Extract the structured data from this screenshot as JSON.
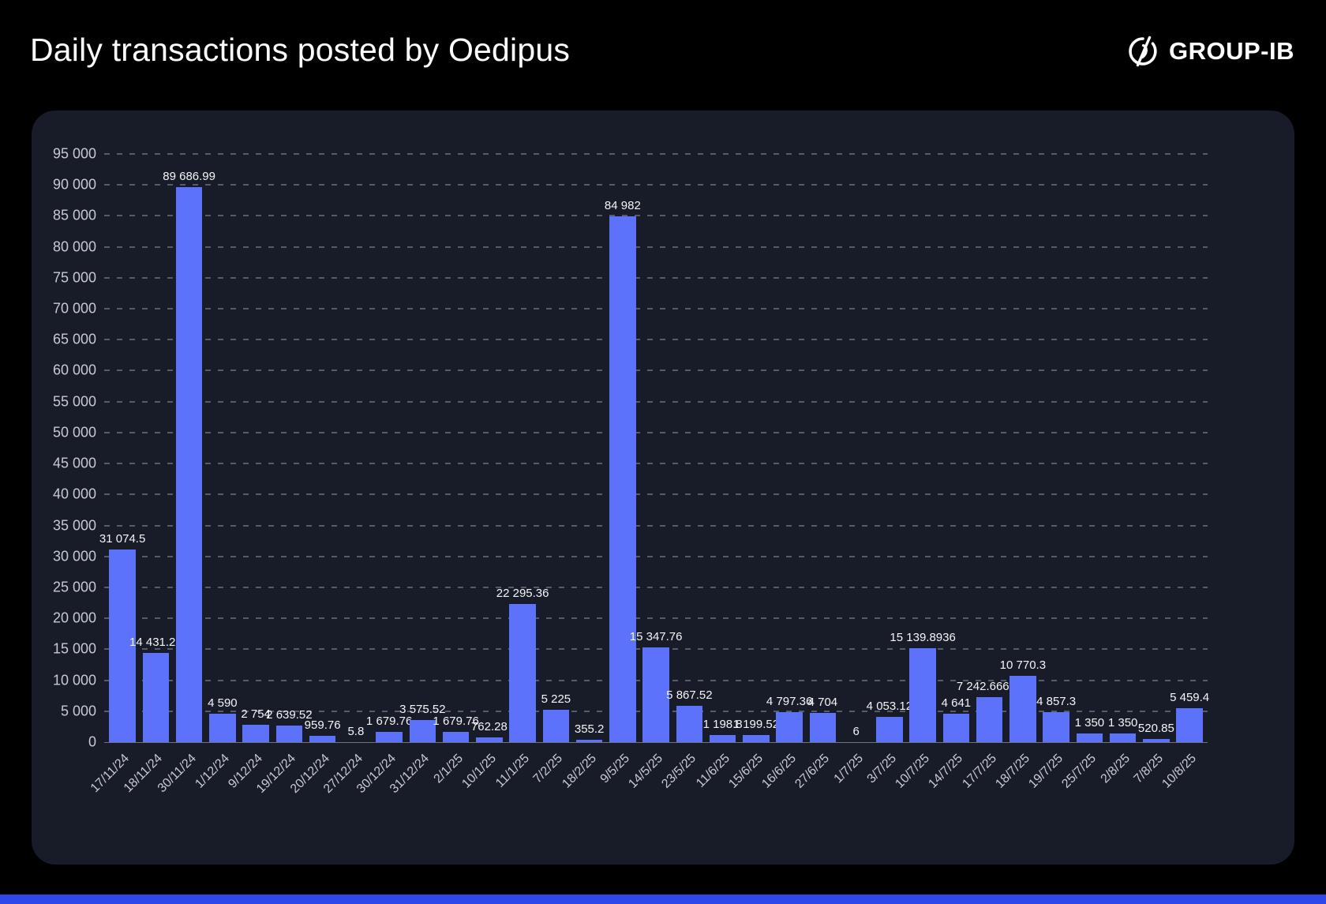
{
  "header": {
    "title": "Daily transactions posted by Oedipus",
    "brand": "GROUP-IB"
  },
  "colors": {
    "page_background": "#000000",
    "panel_background": "#181b28",
    "bar": "#5c72fa",
    "gridline": "#565b6c",
    "axis_text": "#c7c9d3",
    "value_text": "#f4f5f7",
    "accent_strip": "#2d47eb"
  },
  "chart_data": {
    "type": "bar",
    "title": "Daily transactions posted by Oedipus",
    "xlabel": "",
    "ylabel": "",
    "ylim": [
      0,
      95000
    ],
    "y_tick_step": 5000,
    "y_tick_labels": [
      "95 000",
      "90 000",
      "85 000",
      "80 000",
      "75 000",
      "70 000",
      "65 000",
      "60 000",
      "55 000",
      "50 000",
      "45 000",
      "40 000",
      "35 000",
      "30 000",
      "25 000",
      "20 000",
      "15 000",
      "10 000",
      "5 000",
      "0"
    ],
    "grid": "dashed-horizontal",
    "legend": "none",
    "categories": [
      "17/11/24",
      "18/11/24",
      "30/11/24",
      "1/12/24",
      "9/12/24",
      "19/12/24",
      "20/12/24",
      "27/12/24",
      "30/12/24",
      "31/12/24",
      "2/1/25",
      "10/1/25",
      "11/1/25",
      "7/2/25",
      "18/2/25",
      "9/5/25",
      "14/5/25",
      "23/5/25",
      "11/6/25",
      "15/6/25",
      "16/6/25",
      "27/6/25",
      "1/7/25",
      "3/7/25",
      "10/7/25",
      "14/7/25",
      "17/7/25",
      "18/7/25",
      "19/7/25",
      "25/7/25",
      "2/8/25",
      "7/8/25",
      "10/8/25"
    ],
    "values": [
      31074.5,
      14431.26,
      89686.99,
      4590,
      2754,
      2639.52,
      959.76,
      5.8,
      1679.76,
      3575.52,
      1679.76,
      762.28,
      22295.36,
      5225,
      355.2,
      84982,
      15347.76,
      5867.52,
      1198.8,
      1199.52,
      4797.36,
      4704,
      6,
      4053.12,
      15139.8936,
      4641,
      7242.66627,
      10770.3,
      4857.3,
      1350,
      1350,
      520.85,
      5459.4
    ],
    "value_labels": [
      "31 074.5",
      "14 431.26",
      "89 686.99",
      "4 590",
      "2 754",
      "2 639.52",
      "959.76",
      "5.8",
      "1 679.76",
      "3 575.52",
      "1 679.76",
      "762.28",
      "22 295.36",
      "5 225",
      "355.2",
      "84 982",
      "15 347.76",
      "5 867.52",
      "1 198.8",
      "1 199.52",
      "4 797.36",
      "4 704",
      "6",
      "4 053.12",
      "15 139.8936",
      "4 641",
      "7 242.66627",
      "10 770.3",
      "4 857.3",
      "1 350",
      "1 350",
      "520.85",
      "5 459.4"
    ]
  }
}
